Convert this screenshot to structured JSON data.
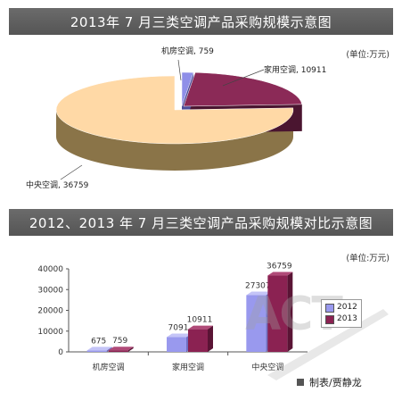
{
  "banners": {
    "pie_title": "2013年 7 月三类空调产品采购规模示意图",
    "bar_title": "2012、2013 年 7 月三类空调产品采购规模对比示意图"
  },
  "unit_text": "(单位:万元)",
  "credit": "制表/贾静龙",
  "watermark": "ACT",
  "colors": {
    "series_2012": "#9999ee",
    "series_2013": "#8b2252",
    "pie_central": "#ffd9a6",
    "pie_central_side": "#8a7448",
    "pie_household": "#8b2a57",
    "pie_household_side": "#4a1530",
    "pie_machine": "#8f8fe8",
    "pie_machine_side": "#4d4d99"
  },
  "chart_data": [
    {
      "type": "pie",
      "title": "2013年 7 月三类空调产品采购规模示意图",
      "slices": [
        {
          "name": "机房空调",
          "value": 759,
          "label": "机房空调, 759"
        },
        {
          "name": "家用空调",
          "value": 10911,
          "label": "家用空调, 10911"
        },
        {
          "name": "中央空调",
          "value": 36759,
          "label": "中央空调, 36759"
        }
      ]
    },
    {
      "type": "bar",
      "title": "2012、2013 年 7 月三类空调产品采购规模对比示意图",
      "categories": [
        "机房空调",
        "家用空调",
        "中央空调"
      ],
      "series": [
        {
          "name": "2012",
          "values": [
            675,
            7091,
            27307
          ]
        },
        {
          "name": "2013",
          "values": [
            759,
            10911,
            36759
          ]
        }
      ],
      "ylim": [
        0,
        40000
      ],
      "yticks": [
        0,
        10000,
        20000,
        30000,
        40000
      ],
      "yticklabels": [
        "0",
        "10000",
        "20000",
        "30000",
        "40000"
      ],
      "legend": "right",
      "grid": false
    }
  ]
}
